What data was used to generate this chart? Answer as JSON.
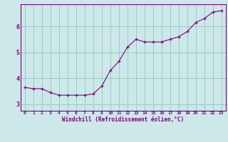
{
  "x": [
    0,
    1,
    2,
    3,
    4,
    5,
    6,
    7,
    8,
    9,
    10,
    11,
    12,
    13,
    14,
    15,
    16,
    17,
    18,
    19,
    20,
    21,
    22,
    23
  ],
  "y": [
    3.65,
    3.6,
    3.6,
    3.45,
    3.35,
    3.35,
    3.35,
    3.35,
    3.4,
    3.7,
    4.3,
    4.65,
    5.2,
    5.5,
    5.4,
    5.4,
    5.4,
    5.5,
    5.6,
    5.8,
    6.15,
    6.3,
    6.55,
    6.6
  ],
  "line_color": "#800080",
  "marker": "+",
  "marker_color": "#800080",
  "bg_color": "#cce8e8",
  "grid_color": "#99cccc",
  "xlabel": "Windchill (Refroidissement éolien,°C)",
  "xlabel_color": "#800080",
  "tick_color": "#800080",
  "spine_color": "#800080",
  "xlim": [
    -0.5,
    23.5
  ],
  "ylim": [
    2.75,
    6.85
  ],
  "yticks": [
    3,
    4,
    5,
    6
  ],
  "xticks": [
    0,
    1,
    2,
    3,
    4,
    5,
    6,
    7,
    8,
    9,
    10,
    11,
    12,
    13,
    14,
    15,
    16,
    17,
    18,
    19,
    20,
    21,
    22,
    23
  ]
}
